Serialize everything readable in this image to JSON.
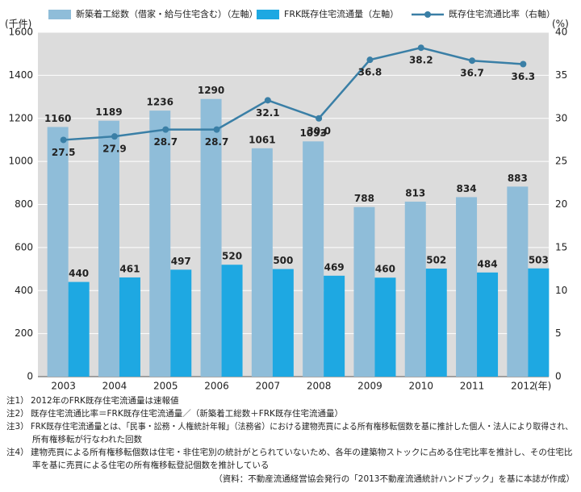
{
  "chart_data": {
    "type": "bar",
    "y_unit": "(千件)",
    "y2_unit": "(%)",
    "x_unit": "(年)",
    "categories": [
      "2003",
      "2004",
      "2005",
      "2006",
      "2007",
      "2008",
      "2009",
      "2010",
      "2011",
      "2012"
    ],
    "series": [
      {
        "name": "新築着工総数（借家・給与住宅含む）（左軸）",
        "type": "bar",
        "color": "#8fbdd9",
        "values": [
          1160,
          1189,
          1236,
          1290,
          1061,
          1093,
          788,
          813,
          834,
          883
        ]
      },
      {
        "name": "FRK既存住宅流通量（左軸）",
        "type": "bar",
        "color": "#1ea8e2",
        "values": [
          440,
          461,
          497,
          520,
          500,
          469,
          460,
          502,
          484,
          503
        ]
      },
      {
        "name": "既存住宅流通比率（右軸）",
        "type": "line",
        "axis": "y2",
        "color": "#3a7fa6",
        "values": [
          27.5,
          27.9,
          28.7,
          28.7,
          32.1,
          30.0,
          36.8,
          38.2,
          36.7,
          36.3
        ],
        "value_labels": [
          "27.5",
          "27.9",
          "28.7",
          "28.7",
          "32.1",
          "30.0",
          "36.8",
          "38.2",
          "36.7",
          "36.3"
        ]
      }
    ],
    "ylim": [
      0,
      1600
    ],
    "yticks": [
      0,
      200,
      400,
      600,
      800,
      1000,
      1200,
      1400,
      1600
    ],
    "y2lim": [
      0,
      40
    ],
    "y2ticks": [
      0,
      5,
      10,
      15,
      20,
      25,
      30,
      35,
      40
    ],
    "grid": true,
    "legend": "top"
  },
  "notes": [
    {
      "mark": "注1）",
      "lines": [
        "2012年のFRK既存住宅流通量は速報値"
      ]
    },
    {
      "mark": "注2）",
      "lines": [
        "既存住宅流通比率＝FRK既存住宅流通量／（新築着工総数＋FRK既存住宅流通量）"
      ]
    },
    {
      "mark": "注3）",
      "lines": [
        "FRK既存住宅流通量とは、「民事・訟務・人権統計年報」（法務省）における建物売買による所有権移転個数を基に推計した個人・法人により取得され、",
        "所有権移転が行なわれた回数"
      ]
    },
    {
      "mark": "注4）",
      "lines": [
        "建物売買による所有権移転個数は住宅・非住宅別の統計がとられていないため、各年の建築物ストックに占める住宅比率を推計し、その住宅比",
        "率を基に売買による住宅の所有権移転登記個数を推計している"
      ]
    }
  ],
  "source": "（資料：不動産流通経営協会発行の「2013不動産流通統計ハンドブック」を基に本誌が作成）"
}
